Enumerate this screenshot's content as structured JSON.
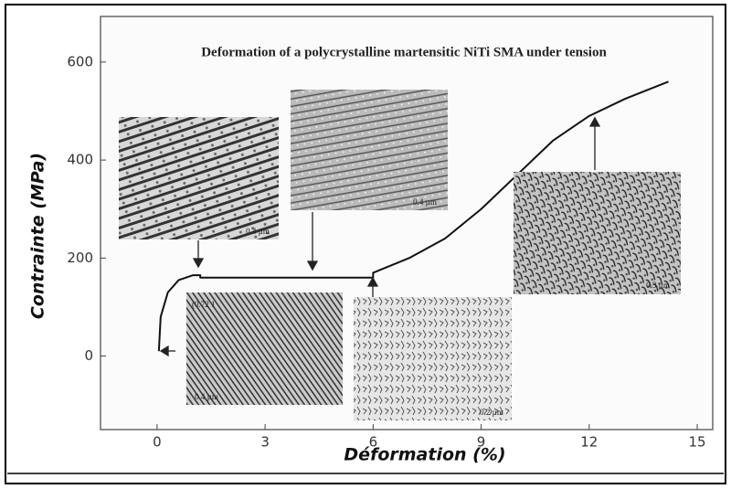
{
  "chart_data": {
    "type": "line",
    "title": "Deformation of a polycrystalline martensitic NiTi SMA under tension",
    "x_label": "Déformation (%)",
    "y_label": "Contrainte (MPa)",
    "xlim": [
      -1.57,
      15.43
    ],
    "ylim": [
      -150,
      693
    ],
    "xticks": [
      0,
      3,
      6,
      9,
      12,
      15
    ],
    "yticks": [
      0,
      200,
      400,
      600
    ],
    "series": [
      {
        "color": "#111111",
        "x": [
          0.05,
          0.1,
          0.3,
          0.6,
          1.0,
          1.2,
          1.2,
          6.0,
          6.0,
          7.0,
          8.0,
          9.0,
          10.0,
          11.0,
          12.0,
          13.0,
          14.2
        ],
        "values": [
          10,
          80,
          130,
          155,
          165,
          165,
          160,
          160,
          170,
          200,
          240,
          300,
          370,
          440,
          490,
          525,
          560
        ]
      }
    ],
    "annotations": [
      "0.4 µm",
      "0.4 µm",
      "(0.72 1",
      "0.4 µm",
      "0.2 µm",
      "0.3 µm"
    ]
  }
}
